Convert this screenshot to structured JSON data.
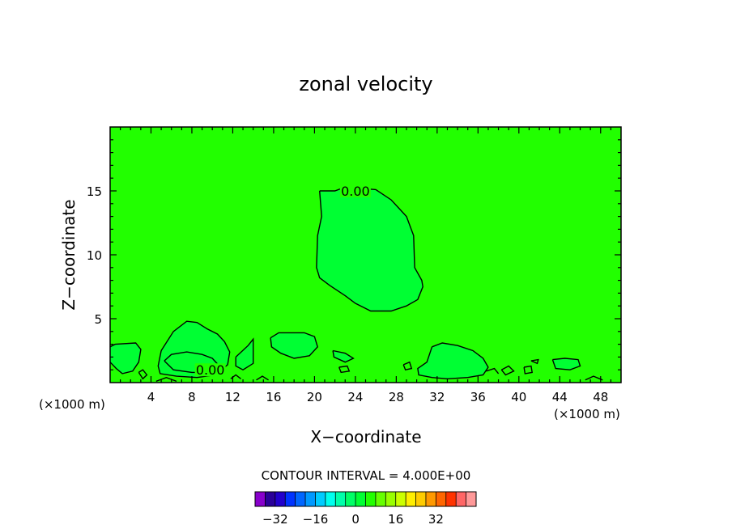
{
  "chart_data": {
    "type": "contour",
    "title": "zonal velocity",
    "xlabel": "X−coordinate",
    "ylabel": "Z−coordinate",
    "x_unit_left": "(×1000 m)",
    "x_unit_right": "(×1000 m)",
    "xlim": [
      0,
      50
    ],
    "ylim": [
      0,
      20
    ],
    "xticks": [
      {
        "value": 4,
        "label": "4"
      },
      {
        "value": 8,
        "label": "8"
      },
      {
        "value": 12,
        "label": "12"
      },
      {
        "value": 16,
        "label": "16"
      },
      {
        "value": 20,
        "label": "20"
      },
      {
        "value": 24,
        "label": "24"
      },
      {
        "value": 28,
        "label": "28"
      },
      {
        "value": 32,
        "label": "32"
      },
      {
        "value": 36,
        "label": "36"
      },
      {
        "value": 40,
        "label": "40"
      },
      {
        "value": 44,
        "label": "44"
      },
      {
        "value": 48,
        "label": "48"
      }
    ],
    "yticks": [
      {
        "value": 5,
        "label": "5"
      },
      {
        "value": 10,
        "label": "10"
      },
      {
        "value": 15,
        "label": "15"
      }
    ],
    "background_color": "#22ff00",
    "region_color": "#00ff33",
    "contour_labels": [
      {
        "text": "0.00",
        "x": 24.0,
        "y": 15.0
      },
      {
        "text": "0.00",
        "x": 9.8,
        "y": 1.0
      }
    ],
    "regions": [
      {
        "name": "upper-cell",
        "points": [
          [
            20.5,
            15
          ],
          [
            22,
            15
          ],
          [
            23,
            15.3
          ],
          [
            26,
            15.1
          ],
          [
            27.5,
            14.3
          ],
          [
            29,
            13
          ],
          [
            29.7,
            11.5
          ],
          [
            29.8,
            9
          ],
          [
            30.5,
            8
          ],
          [
            30.6,
            7.5
          ],
          [
            30.1,
            6.5
          ],
          [
            29,
            6
          ],
          [
            27.5,
            5.6
          ],
          [
            25.5,
            5.6
          ],
          [
            24,
            6.2
          ],
          [
            23,
            6.8
          ],
          [
            21.5,
            7.6
          ],
          [
            20.5,
            8.2
          ],
          [
            20.2,
            9
          ],
          [
            20.3,
            11.5
          ],
          [
            20.7,
            13
          ],
          [
            20.5,
            15
          ]
        ]
      },
      {
        "name": "low-cell-a",
        "points": [
          [
            0,
            2.8
          ],
          [
            0.5,
            3.0
          ],
          [
            2.5,
            3.1
          ],
          [
            3.0,
            2.6
          ],
          [
            2.8,
            1.6
          ],
          [
            2.2,
            0.9
          ],
          [
            1.2,
            0.7
          ],
          [
            0.6,
            1.1
          ],
          [
            0,
            1.6
          ]
        ]
      },
      {
        "name": "low-cell-b",
        "points": [
          [
            5.0,
            2.5
          ],
          [
            6.2,
            4.0
          ],
          [
            7.5,
            4.8
          ],
          [
            8.5,
            4.7
          ],
          [
            9.5,
            4.2
          ],
          [
            10.5,
            3.8
          ],
          [
            11.2,
            3.2
          ],
          [
            11.7,
            2.4
          ],
          [
            11.5,
            1.4
          ],
          [
            10.3,
            0.6
          ],
          [
            8.5,
            0.4
          ],
          [
            6.5,
            0.5
          ],
          [
            4.9,
            0.7
          ],
          [
            4.7,
            1.3
          ],
          [
            5.0,
            2.5
          ]
        ]
      },
      {
        "name": "low-cell-c",
        "points": [
          [
            15.7,
            3.5
          ],
          [
            16.5,
            3.9
          ],
          [
            19,
            3.9
          ],
          [
            20,
            3.6
          ],
          [
            20.3,
            2.8
          ],
          [
            19.5,
            2.1
          ],
          [
            18,
            1.9
          ],
          [
            16.7,
            2.3
          ],
          [
            15.8,
            2.8
          ],
          [
            15.7,
            3.5
          ]
        ]
      },
      {
        "name": "low-cell-d",
        "points": [
          [
            31.5,
            2.8
          ],
          [
            32.5,
            3.1
          ],
          [
            34,
            2.9
          ],
          [
            35.5,
            2.5
          ],
          [
            36.5,
            1.9
          ],
          [
            37,
            1.2
          ],
          [
            36.5,
            0.6
          ],
          [
            35,
            0.4
          ],
          [
            33,
            0.3
          ],
          [
            31.5,
            0.4
          ],
          [
            30.2,
            0.6
          ],
          [
            30.1,
            1.1
          ],
          [
            31,
            1.6
          ],
          [
            31.5,
            2.8
          ]
        ]
      },
      {
        "name": "low-cell-e",
        "points": [
          [
            43.3,
            1.8
          ],
          [
            44.5,
            1.9
          ],
          [
            45.8,
            1.8
          ],
          [
            46,
            1.3
          ],
          [
            45,
            1.0
          ],
          [
            43.6,
            1.1
          ],
          [
            43.3,
            1.8
          ]
        ]
      },
      {
        "name": "low-cell-f",
        "points": [
          [
            21.8,
            2.5
          ],
          [
            23,
            2.3
          ],
          [
            23.8,
            1.9
          ],
          [
            23,
            1.6
          ],
          [
            21.9,
            2.0
          ],
          [
            21.8,
            2.5
          ]
        ]
      },
      {
        "name": "low-cell-g",
        "points": [
          [
            12.3,
            2.0
          ],
          [
            13.5,
            2.9
          ],
          [
            14.0,
            3.4
          ],
          [
            14.0,
            1.5
          ],
          [
            13.0,
            1.0
          ],
          [
            12.3,
            1.3
          ],
          [
            12.3,
            2.0
          ]
        ]
      }
    ],
    "contours": [
      {
        "name": "upper",
        "points": [
          [
            20.5,
            15
          ],
          [
            22,
            15
          ],
          [
            23,
            15.3
          ],
          [
            26,
            15.1
          ],
          [
            27.5,
            14.3
          ],
          [
            29,
            13
          ],
          [
            29.7,
            11.5
          ],
          [
            29.8,
            9
          ],
          [
            30.5,
            8
          ],
          [
            30.6,
            7.5
          ],
          [
            30.1,
            6.5
          ],
          [
            29,
            6
          ],
          [
            27.5,
            5.6
          ],
          [
            25.5,
            5.6
          ],
          [
            24,
            6.2
          ],
          [
            23,
            6.8
          ],
          [
            21.5,
            7.6
          ],
          [
            20.5,
            8.2
          ],
          [
            20.2,
            9
          ],
          [
            20.3,
            11.5
          ],
          [
            20.7,
            13
          ],
          [
            20.5,
            15
          ]
        ]
      },
      {
        "name": "lower-a",
        "points": [
          [
            0,
            2.8
          ],
          [
            0.5,
            3.0
          ],
          [
            2.5,
            3.1
          ],
          [
            3.0,
            2.6
          ],
          [
            2.8,
            1.6
          ],
          [
            2.2,
            0.9
          ],
          [
            1.2,
            0.7
          ],
          [
            0.6,
            1.1
          ],
          [
            0,
            1.6
          ]
        ]
      },
      {
        "name": "lower-b",
        "points": [
          [
            5.0,
            2.5
          ],
          [
            6.2,
            4.0
          ],
          [
            7.5,
            4.8
          ],
          [
            8.5,
            4.7
          ],
          [
            9.5,
            4.2
          ],
          [
            10.5,
            3.8
          ],
          [
            11.2,
            3.2
          ],
          [
            11.7,
            2.4
          ],
          [
            11.5,
            1.4
          ],
          [
            10.3,
            0.6
          ],
          [
            8.5,
            0.4
          ],
          [
            6.5,
            0.5
          ],
          [
            4.9,
            0.7
          ],
          [
            4.7,
            1.3
          ],
          [
            5.0,
            2.5
          ]
        ]
      },
      {
        "name": "lower-b-inner",
        "points": [
          [
            5.3,
            1.7
          ],
          [
            6.0,
            2.2
          ],
          [
            7.5,
            2.4
          ],
          [
            9.0,
            2.2
          ],
          [
            10.0,
            1.9
          ],
          [
            10.8,
            1.2
          ],
          [
            10.0,
            0.8
          ],
          [
            8.0,
            0.8
          ],
          [
            6.2,
            1.0
          ],
          [
            5.3,
            1.7
          ]
        ]
      },
      {
        "name": "lower-c",
        "points": [
          [
            15.7,
            3.5
          ],
          [
            16.5,
            3.9
          ],
          [
            19,
            3.9
          ],
          [
            20,
            3.6
          ],
          [
            20.3,
            2.8
          ],
          [
            19.5,
            2.1
          ],
          [
            18,
            1.9
          ],
          [
            16.7,
            2.3
          ],
          [
            15.8,
            2.8
          ],
          [
            15.7,
            3.5
          ]
        ]
      },
      {
        "name": "lower-d",
        "points": [
          [
            31.5,
            2.8
          ],
          [
            32.5,
            3.1
          ],
          [
            34,
            2.9
          ],
          [
            35.5,
            2.5
          ],
          [
            36.5,
            1.9
          ],
          [
            37,
            1.2
          ],
          [
            36.5,
            0.6
          ],
          [
            35,
            0.4
          ],
          [
            33,
            0.3
          ],
          [
            31.5,
            0.4
          ],
          [
            30.2,
            0.6
          ],
          [
            30.1,
            1.1
          ],
          [
            31,
            1.6
          ],
          [
            31.5,
            2.8
          ]
        ]
      },
      {
        "name": "lower-e",
        "points": [
          [
            43.3,
            1.8
          ],
          [
            44.5,
            1.9
          ],
          [
            45.8,
            1.8
          ],
          [
            46,
            1.3
          ],
          [
            45,
            1.0
          ],
          [
            43.6,
            1.1
          ],
          [
            43.3,
            1.8
          ]
        ]
      },
      {
        "name": "lower-f",
        "points": [
          [
            21.8,
            2.5
          ],
          [
            23,
            2.3
          ],
          [
            23.8,
            1.9
          ],
          [
            23,
            1.6
          ],
          [
            21.9,
            2.0
          ],
          [
            21.8,
            2.5
          ]
        ]
      },
      {
        "name": "lower-g",
        "points": [
          [
            12.3,
            2.0
          ],
          [
            13.5,
            2.9
          ],
          [
            14.0,
            3.4
          ],
          [
            14.0,
            1.5
          ],
          [
            13.0,
            1.0
          ],
          [
            12.3,
            1.3
          ],
          [
            12.3,
            2.0
          ]
        ]
      },
      {
        "name": "lower-h",
        "points": [
          [
            2.8,
            0.8
          ],
          [
            3.2,
            1.0
          ],
          [
            3.6,
            0.6
          ],
          [
            3.2,
            0.3
          ],
          [
            2.8,
            0.8
          ]
        ]
      },
      {
        "name": "lower-i",
        "points": [
          [
            22.4,
            1.2
          ],
          [
            23.2,
            1.3
          ],
          [
            23.4,
            0.9
          ],
          [
            22.6,
            0.8
          ],
          [
            22.4,
            1.2
          ]
        ]
      },
      {
        "name": "lower-j",
        "points": [
          [
            28.7,
            1.4
          ],
          [
            29.3,
            1.6
          ],
          [
            29.5,
            1.1
          ],
          [
            28.9,
            1.0
          ],
          [
            28.7,
            1.4
          ]
        ]
      },
      {
        "name": "lower-k",
        "points": [
          [
            38.3,
            1.0
          ],
          [
            39.0,
            1.3
          ],
          [
            39.5,
            0.9
          ],
          [
            38.7,
            0.6
          ],
          [
            38.3,
            1.0
          ]
        ]
      },
      {
        "name": "lower-l",
        "points": [
          [
            40.5,
            1.2
          ],
          [
            41.2,
            1.3
          ],
          [
            41.3,
            0.8
          ],
          [
            40.6,
            0.7
          ],
          [
            40.5,
            1.2
          ]
        ]
      },
      {
        "name": "lower-m",
        "points": [
          [
            41.2,
            1.7
          ],
          [
            41.9,
            1.8
          ],
          [
            41.8,
            1.5
          ],
          [
            41.2,
            1.7
          ]
        ]
      },
      {
        "name": "lower-n",
        "points": [
          [
            11.8,
            0.3
          ],
          [
            12.3,
            0.6
          ],
          [
            12.8,
            0.3
          ]
        ]
      },
      {
        "name": "lower-o",
        "points": [
          [
            14.3,
            0.2
          ],
          [
            14.9,
            0.5
          ],
          [
            15.5,
            0.2
          ]
        ]
      },
      {
        "name": "lower-p",
        "points": [
          [
            46.5,
            0.2
          ],
          [
            47.3,
            0.5
          ],
          [
            48.2,
            0.2
          ]
        ]
      },
      {
        "name": "lower-q",
        "points": [
          [
            4.5,
            0.1
          ],
          [
            5.5,
            0.4
          ],
          [
            6.5,
            0.1
          ]
        ]
      },
      {
        "name": "lower-r",
        "points": [
          [
            36.8,
            0.9
          ],
          [
            37.6,
            1.1
          ],
          [
            38.0,
            0.7
          ]
        ]
      }
    ],
    "colorbar": {
      "title": "CONTOUR INTERVAL = 4.000E+00",
      "colors": [
        "#8800cc",
        "#2a0099",
        "#2200cc",
        "#0033ff",
        "#0066ff",
        "#0099ff",
        "#00ccff",
        "#00ffee",
        "#00ffaa",
        "#00ff66",
        "#00ff33",
        "#22ff00",
        "#66ff00",
        "#99ff00",
        "#ccff00",
        "#ffee00",
        "#ffcc00",
        "#ff9900",
        "#ff6600",
        "#ff3300",
        "#ff6666",
        "#ff9999"
      ],
      "min": -40,
      "max": 48,
      "step": 4,
      "ticks": [
        {
          "value": -32,
          "label": "−32"
        },
        {
          "value": -16,
          "label": "−16"
        },
        {
          "value": 0,
          "label": "0"
        },
        {
          "value": 16,
          "label": "16"
        },
        {
          "value": 32,
          "label": "32"
        }
      ]
    }
  }
}
